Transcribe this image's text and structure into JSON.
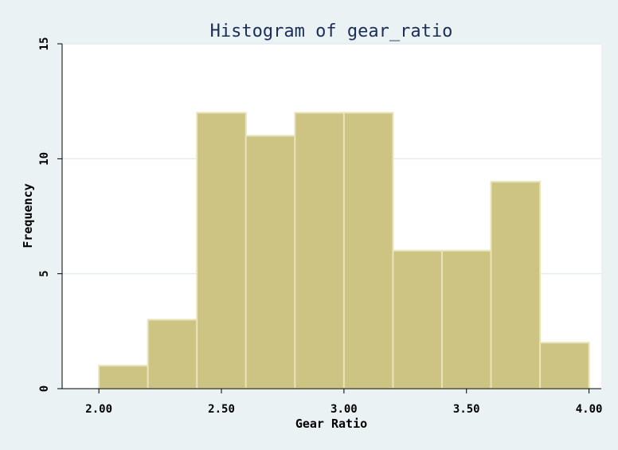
{
  "chart_data": {
    "type": "bar",
    "title": "Histogram of gear_ratio",
    "xlabel": "Gear Ratio",
    "ylabel": "Frequency",
    "bins": [
      {
        "start": 2.0,
        "end": 2.2,
        "count": 1
      },
      {
        "start": 2.2,
        "end": 2.4,
        "count": 3
      },
      {
        "start": 2.4,
        "end": 2.6,
        "count": 12
      },
      {
        "start": 2.6,
        "end": 2.8,
        "count": 11
      },
      {
        "start": 2.8,
        "end": 3.0,
        "count": 12
      },
      {
        "start": 3.0,
        "end": 3.2,
        "count": 12
      },
      {
        "start": 3.2,
        "end": 3.4,
        "count": 6
      },
      {
        "start": 3.4,
        "end": 3.6,
        "count": 6
      },
      {
        "start": 3.6,
        "end": 3.8,
        "count": 9
      },
      {
        "start": 3.8,
        "end": 4.0,
        "count": 2
      }
    ],
    "xlim": [
      1.85,
      4.05
    ],
    "ylim": [
      0,
      15
    ],
    "xticks": [
      2.0,
      2.5,
      3.0,
      3.5,
      4.0
    ],
    "xtick_labels": [
      "2.00",
      "2.50",
      "3.00",
      "3.50",
      "4.00"
    ],
    "yticks": [
      0,
      5,
      10,
      15
    ],
    "ytick_labels": [
      "0",
      "5",
      "10",
      "15"
    ],
    "grid": true,
    "colors": {
      "bar_fill": "#cdc483",
      "bar_stroke": "#e8e3b8",
      "plot_bg": "#ffffff",
      "page_bg": "#eaf2f3",
      "grid": "#e4ecee",
      "title": "#1a2e5a"
    }
  }
}
